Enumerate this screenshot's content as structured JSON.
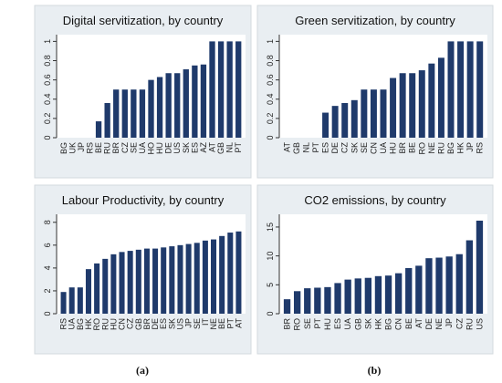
{
  "chart_data": [
    {
      "type": "bar",
      "title": "Digital servitization, by country",
      "categories": [
        "BG",
        "UK",
        "JP",
        "RS",
        "BE",
        "RU",
        "BR",
        "CZ",
        "SE",
        "UA",
        "HO",
        "HU",
        "DE",
        "US",
        "SK",
        "ES",
        "AZ",
        "AT",
        "GB",
        "NL",
        "PT"
      ],
      "values": [
        0,
        0,
        0,
        0,
        0.17,
        0.36,
        0.5,
        0.5,
        0.5,
        0.5,
        0.6,
        0.63,
        0.67,
        0.67,
        0.71,
        0.75,
        0.76,
        1,
        1,
        1,
        1
      ],
      "color": "#1f3a6b",
      "ylim": [
        0,
        1.07
      ],
      "yticks": [
        0,
        0.2,
        0.4,
        0.6,
        0.8,
        1
      ]
    },
    {
      "type": "bar",
      "title": "Green servitization, by country",
      "categories": [
        "AT",
        "GB",
        "NL",
        "PT",
        "ES",
        "DE",
        "CZ",
        "SK",
        "SE",
        "CN",
        "UA",
        "HU",
        "BR",
        "BE",
        "RO",
        "NE",
        "RU",
        "BG",
        "HK",
        "JP",
        "RS"
      ],
      "values": [
        0,
        0,
        0,
        0,
        0.26,
        0.33,
        0.36,
        0.39,
        0.5,
        0.5,
        0.5,
        0.62,
        0.67,
        0.67,
        0.7,
        0.77,
        0.83,
        1,
        1,
        1,
        1
      ],
      "color": "#1f3a6b",
      "ylim": [
        0,
        1.07
      ],
      "yticks": [
        0,
        0.2,
        0.4,
        0.6,
        0.8,
        1
      ]
    },
    {
      "type": "bar",
      "title": "Labour Productivity, by country",
      "categories": [
        "RS",
        "UA",
        "BG",
        "HK",
        "RO",
        "RU",
        "HU",
        "CN",
        "CZ",
        "GB",
        "BR",
        "DE",
        "ES",
        "SK",
        "US",
        "JP",
        "SE",
        "IT",
        "NE",
        "BE",
        "PT",
        "AT"
      ],
      "values": [
        1.9,
        2.3,
        2.3,
        3.9,
        4.4,
        4.8,
        5.2,
        5.4,
        5.5,
        5.6,
        5.7,
        5.7,
        5.8,
        5.9,
        6.0,
        6.1,
        6.2,
        6.4,
        6.5,
        6.8,
        7.1,
        7.2
      ],
      "color": "#1f3a6b",
      "ylim": [
        0,
        8.7
      ],
      "yticks": [
        0,
        2,
        4,
        6,
        8
      ]
    },
    {
      "type": "bar",
      "title": "CO2 emissions, by country",
      "categories": [
        "BR",
        "RO",
        "SE",
        "PT",
        "HU",
        "ES",
        "UA",
        "GB",
        "SK",
        "HK",
        "BG",
        "CN",
        "BE",
        "AT",
        "DE",
        "NE",
        "JP",
        "CZ",
        "RU",
        "US"
      ],
      "values": [
        2.5,
        3.9,
        4.4,
        4.5,
        4.6,
        5.3,
        5.9,
        6.1,
        6.2,
        6.5,
        6.6,
        7.0,
        7.9,
        8.3,
        9.6,
        9.7,
        9.9,
        10.3,
        12.7,
        16.1
      ],
      "color": "#1f3a6b",
      "ylim": [
        0,
        17.2
      ],
      "yticks": [
        0,
        5,
        10,
        15
      ]
    }
  ],
  "captions": [
    "(a)",
    "(b)"
  ]
}
